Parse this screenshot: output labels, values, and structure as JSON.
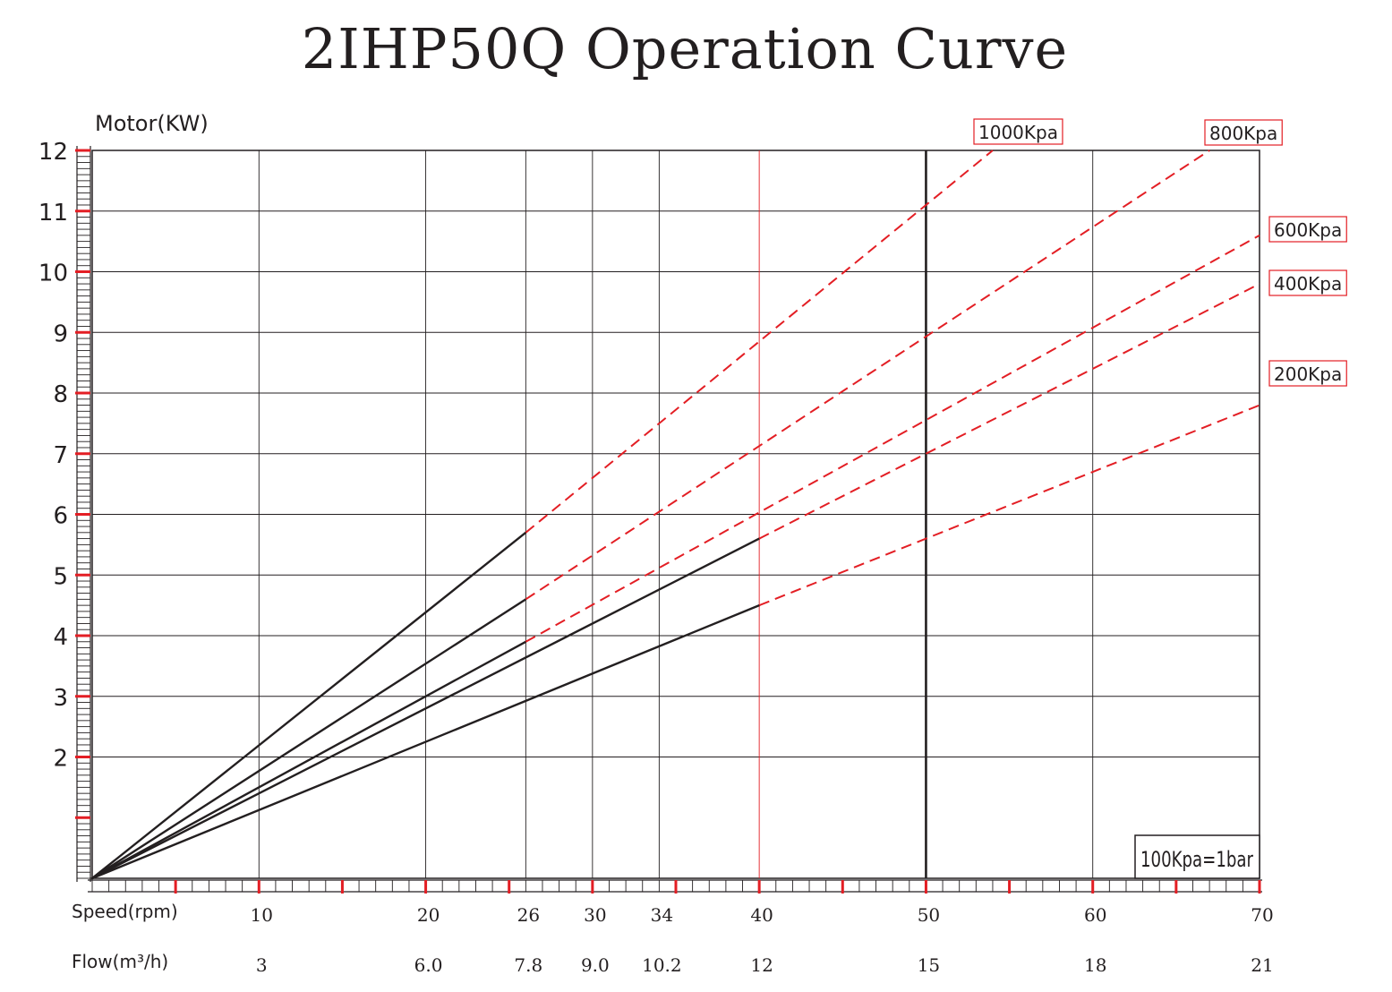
{
  "chart_data": {
    "type": "line",
    "title": "2IHP50Q Operation Curve",
    "ylabel": "Motor(KW)",
    "xlabel": "Speed(rpm)",
    "x2label": "Flow(m³/h)",
    "xlim": [
      0,
      70
    ],
    "ylim": [
      0,
      12
    ],
    "y_ticks": [
      2,
      3,
      4,
      5,
      6,
      7,
      8,
      9,
      10,
      11,
      12
    ],
    "x_ticks": [
      10,
      20,
      26,
      30,
      34,
      40,
      50,
      60,
      70
    ],
    "flow_ticks": [
      "3",
      "6.0",
      "7.8",
      "9.0",
      "10.2",
      "12",
      "15",
      "18",
      "21"
    ],
    "max_speed_line": 50,
    "note": "100Kpa=1bar",
    "grid": true,
    "series": [
      {
        "name": "1000Kpa",
        "solid": [
          [
            0,
            0
          ],
          [
            26,
            5.7
          ]
        ],
        "dashed": [
          [
            26,
            5.7
          ],
          [
            54,
            12
          ]
        ]
      },
      {
        "name": "800Kpa",
        "solid": [
          [
            0,
            0
          ],
          [
            26,
            4.6
          ]
        ],
        "dashed": [
          [
            26,
            4.6
          ],
          [
            67,
            12
          ]
        ]
      },
      {
        "name": "600Kpa",
        "solid": [
          [
            0,
            0
          ],
          [
            26,
            3.9
          ]
        ],
        "dashed": [
          [
            26,
            3.9
          ],
          [
            70,
            10.6
          ]
        ]
      },
      {
        "name": "400Kpa",
        "solid": [
          [
            0,
            0
          ],
          [
            40,
            5.6
          ]
        ],
        "dashed": [
          [
            40,
            5.6
          ],
          [
            70,
            9.8
          ]
        ]
      },
      {
        "name": "200Kpa",
        "solid": [
          [
            0,
            0
          ],
          [
            40,
            4.5
          ]
        ],
        "dashed": [
          [
            40,
            4.5
          ],
          [
            70,
            7.8
          ]
        ]
      }
    ],
    "colors": {
      "curve": "#231f20",
      "dashed": "#e31e24",
      "grid": "#231f20",
      "accent": "#e31e24"
    }
  }
}
